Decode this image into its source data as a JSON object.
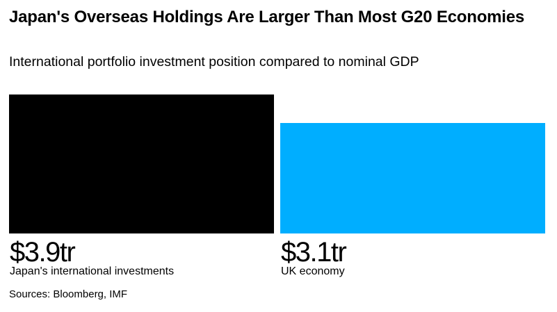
{
  "title": "Japan's Overseas Holdings Are Larger Than Most G20 Economies",
  "subtitle": "International portfolio investment position compared to nominal GDP",
  "source": "Sources: Bloomberg, IMF",
  "colors": {
    "japan": "#000000",
    "uk": "#00aeff"
  },
  "chart_data": {
    "type": "bar",
    "unit": "trillion USD",
    "categories": [
      "Japan's international investments",
      "UK economy"
    ],
    "values": [
      3.9,
      3.1
    ],
    "value_labels": [
      "$3.9tr",
      "$3.1tr"
    ],
    "colors": [
      "#000000",
      "#00aeff"
    ],
    "ylim": [
      0,
      3.9
    ],
    "grid": false,
    "legend": "none"
  }
}
